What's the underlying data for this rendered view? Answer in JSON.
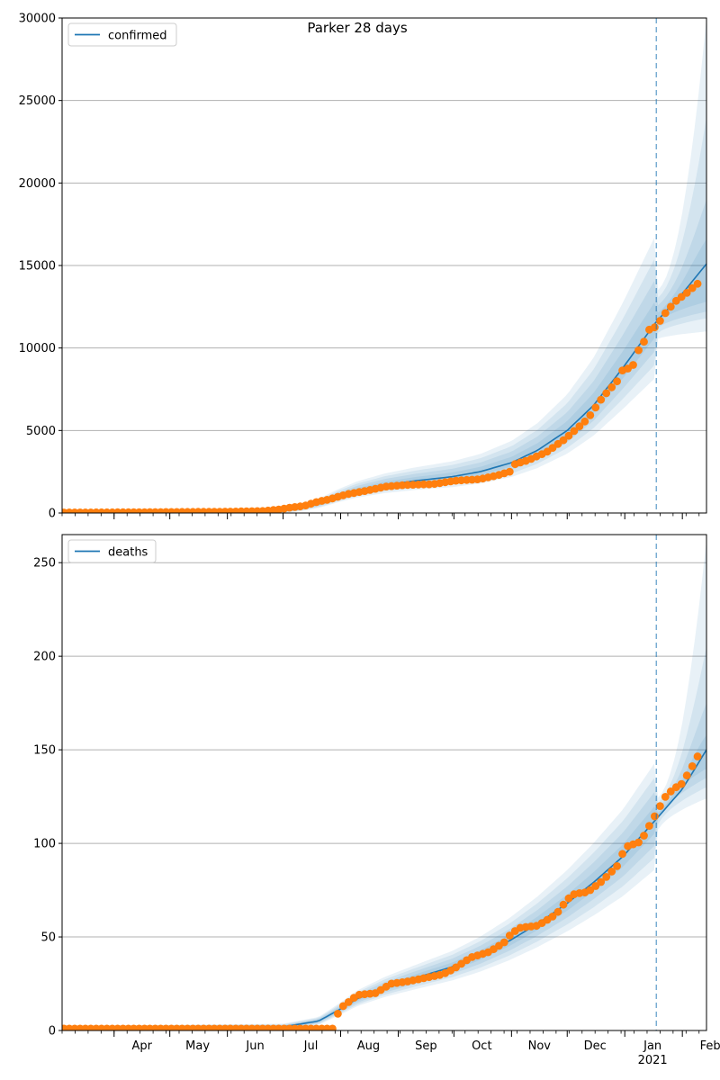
{
  "figure": {
    "title": "Parker 28 days"
  },
  "chart_data": [
    {
      "type": "line",
      "panel": "top",
      "title": "Parker 28 days",
      "legend": {
        "position": "top-left",
        "entries": [
          "confirmed"
        ]
      },
      "ylim": [
        0,
        30000
      ],
      "yticks": [
        0,
        5000,
        10000,
        15000,
        20000,
        25000,
        30000
      ],
      "ytick_labels": [
        "0",
        "5000",
        "10000",
        "15000",
        "20000",
        "25000",
        "30000"
      ],
      "xlim": [
        "2020-03-04",
        "2021-02-14"
      ],
      "grid": "horizontal",
      "forecast_start": "2021-01-18",
      "series": [
        {
          "name": "confirmed",
          "kind": "model-median",
          "color": "#1f77b4",
          "points": [
            [
              "2020-03-04",
              50
            ],
            [
              "2020-06-01",
              70
            ],
            [
              "2020-06-30",
              150
            ],
            [
              "2020-07-10",
              300
            ],
            [
              "2020-07-20",
              550
            ],
            [
              "2020-07-31",
              1000
            ],
            [
              "2020-08-10",
              1350
            ],
            [
              "2020-08-25",
              1700
            ],
            [
              "2020-09-10",
              1950
            ],
            [
              "2020-09-30",
              2200
            ],
            [
              "2020-10-15",
              2500
            ],
            [
              "2020-11-01",
              3050
            ],
            [
              "2020-11-15",
              3800
            ],
            [
              "2020-12-01",
              5000
            ],
            [
              "2020-12-15",
              6500
            ],
            [
              "2020-12-31",
              8800
            ],
            [
              "2021-01-18",
              11600
            ],
            [
              "2021-02-01",
              13300
            ],
            [
              "2021-02-14",
              15100
            ]
          ]
        },
        {
          "name": "observed",
          "kind": "observations",
          "color": "#ff7f0e",
          "points": [
            [
              "2020-03-05",
              30
            ],
            [
              "2020-04-01",
              40
            ],
            [
              "2020-05-01",
              60
            ],
            [
              "2020-06-01",
              80
            ],
            [
              "2020-06-20",
              120
            ],
            [
              "2020-06-28",
              200
            ],
            [
              "2020-07-05",
              330
            ],
            [
              "2020-07-12",
              420
            ],
            [
              "2020-07-20",
              700
            ],
            [
              "2020-07-25",
              800
            ],
            [
              "2020-07-31",
              1000
            ],
            [
              "2020-08-05",
              1150
            ],
            [
              "2020-08-15",
              1350
            ],
            [
              "2020-08-25",
              1600
            ],
            [
              "2020-09-05",
              1700
            ],
            [
              "2020-09-20",
              1750
            ],
            [
              "2020-10-01",
              1950
            ],
            [
              "2020-10-15",
              2050
            ],
            [
              "2020-10-25",
              2300
            ],
            [
              "2020-10-31",
              2500
            ],
            [
              "2020-11-01",
              2900
            ],
            [
              "2020-11-10",
              3200
            ],
            [
              "2020-11-20",
              3700
            ],
            [
              "2020-11-30",
              4500
            ],
            [
              "2020-12-05",
              5000
            ],
            [
              "2020-12-12",
              5700
            ],
            [
              "2020-12-20",
              7000
            ],
            [
              "2020-12-28",
              8000
            ],
            [
              "2020-12-31",
              8700
            ],
            [
              "2021-01-05",
              8800
            ],
            [
              "2021-01-08",
              9800
            ],
            [
              "2021-01-11",
              10300
            ],
            [
              "2021-01-14",
              11100
            ],
            [
              "2021-01-18",
              11300
            ],
            [
              "2021-01-22",
              12000
            ],
            [
              "2021-01-28",
              12800
            ],
            [
              "2021-02-03",
              13300
            ],
            [
              "2021-02-08",
              13800
            ],
            [
              "2021-02-12",
              14100
            ]
          ]
        }
      ],
      "bands": [
        {
          "upper_end": 30000,
          "lower_end": 11000,
          "forecast_upper_at_start": 16800,
          "forecast_lower_at_start": 8400
        },
        {
          "upper_end": 24000,
          "lower_end": 11800
        },
        {
          "upper_end": 19000,
          "lower_end": 12200
        },
        {
          "upper_end": 16600,
          "lower_end": 12800
        }
      ]
    },
    {
      "type": "line",
      "panel": "bottom",
      "legend": {
        "position": "top-left",
        "entries": [
          "deaths"
        ]
      },
      "ylim": [
        0,
        265
      ],
      "yticks": [
        0,
        50,
        100,
        150,
        200,
        250
      ],
      "ytick_labels": [
        "0",
        "50",
        "100",
        "150",
        "200",
        "250"
      ],
      "xlim": [
        "2020-03-04",
        "2021-02-14"
      ],
      "grid": "horizontal",
      "forecast_start": "2021-01-18",
      "xtick_labels": [
        {
          "date": "2020-04-01",
          "label": "Apr"
        },
        {
          "date": "2020-05-01",
          "label": "May"
        },
        {
          "date": "2020-06-01",
          "label": "Jun"
        },
        {
          "date": "2020-07-01",
          "label": "Jul"
        },
        {
          "date": "2020-08-01",
          "label": "Aug"
        },
        {
          "date": "2020-09-01",
          "label": "Sep"
        },
        {
          "date": "2020-10-01",
          "label": "Oct"
        },
        {
          "date": "2020-11-01",
          "label": "Nov"
        },
        {
          "date": "2020-12-01",
          "label": "Dec"
        },
        {
          "date": "2021-01-01",
          "label": "Jan"
        },
        {
          "date": "2021-02-01",
          "label": "Feb"
        }
      ],
      "xtick_year_label": {
        "date": "2021-01-01",
        "label": "2021"
      },
      "series": [
        {
          "name": "deaths",
          "kind": "model-median",
          "color": "#1f77b4",
          "points": [
            [
              "2020-03-04",
              1
            ],
            [
              "2020-07-01",
              2
            ],
            [
              "2020-07-20",
              5
            ],
            [
              "2020-07-31",
              11
            ],
            [
              "2020-08-10",
              17
            ],
            [
              "2020-08-25",
              23
            ],
            [
              "2020-09-10",
              28
            ],
            [
              "2020-09-30",
              34
            ],
            [
              "2020-10-15",
              40
            ],
            [
              "2020-10-31",
              48
            ],
            [
              "2020-11-15",
              57
            ],
            [
              "2020-12-01",
              68
            ],
            [
              "2020-12-15",
              79
            ],
            [
              "2020-12-31",
              93
            ],
            [
              "2021-01-18",
              113
            ],
            [
              "2021-02-01",
              129
            ],
            [
              "2021-02-14",
              150
            ]
          ]
        },
        {
          "name": "observed",
          "kind": "observations",
          "color": "#ff7f0e",
          "points": [
            [
              "2020-03-05",
              1
            ],
            [
              "2020-05-25",
              1
            ],
            [
              "2020-06-15",
              1
            ],
            [
              "2020-07-15",
              1
            ],
            [
              "2020-07-29",
              1
            ],
            [
              "2020-07-30",
              8
            ],
            [
              "2020-08-01",
              12
            ],
            [
              "2020-08-05",
              15
            ],
            [
              "2020-08-10",
              19
            ],
            [
              "2020-08-20",
              20
            ],
            [
              "2020-08-28",
              25
            ],
            [
              "2020-09-05",
              26
            ],
            [
              "2020-09-15",
              28
            ],
            [
              "2020-09-25",
              30
            ],
            [
              "2020-10-01",
              33
            ],
            [
              "2020-10-10",
              39
            ],
            [
              "2020-10-20",
              42
            ],
            [
              "2020-10-28",
              47
            ],
            [
              "2020-11-01",
              52
            ],
            [
              "2020-11-06",
              55
            ],
            [
              "2020-11-15",
              56
            ],
            [
              "2020-11-25",
              62
            ],
            [
              "2020-12-01",
              70
            ],
            [
              "2020-12-05",
              73
            ],
            [
              "2020-12-12",
              74
            ],
            [
              "2020-12-20",
              80
            ],
            [
              "2020-12-28",
              88
            ],
            [
              "2020-12-31",
              95
            ],
            [
              "2021-01-03",
              99
            ],
            [
              "2021-01-08",
              100
            ],
            [
              "2021-01-12",
              105
            ],
            [
              "2021-01-15",
              111
            ],
            [
              "2021-01-18",
              116
            ],
            [
              "2021-01-22",
              124
            ],
            [
              "2021-01-27",
              129
            ],
            [
              "2021-02-01",
              132
            ],
            [
              "2021-02-05",
              139
            ],
            [
              "2021-02-08",
              144
            ],
            [
              "2021-02-12",
              152
            ]
          ]
        }
      ],
      "bands": [
        {
          "upper_end": 262,
          "lower_end": 124,
          "forecast_upper_at_start": 143,
          "forecast_lower_at_start": 88
        },
        {
          "upper_end": 205,
          "lower_end": 130
        },
        {
          "upper_end": 175,
          "lower_end": 135
        },
        {
          "upper_end": 158,
          "lower_end": 140
        }
      ]
    }
  ],
  "colors": {
    "median": "#1f77b4",
    "observed": "#ff7f0e",
    "band": "#1f77b4",
    "grid": "#b0b0b0",
    "forecast_line": "#1f77b4"
  }
}
